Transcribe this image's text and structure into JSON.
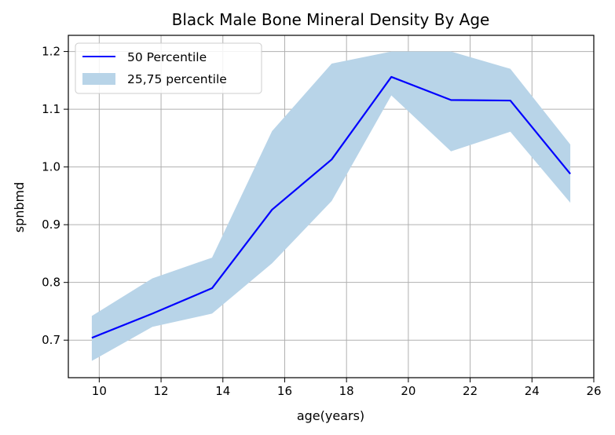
{
  "chart_data": {
    "type": "line",
    "title": "Black Male Bone Mineral Density By Age",
    "xlabel": "age(years)",
    "ylabel": "spnbmd",
    "xlim": [
      9,
      26
    ],
    "ylim": [
      0.635,
      1.228
    ],
    "xticks": [
      10,
      12,
      14,
      16,
      18,
      20,
      22,
      24,
      26
    ],
    "xtick_labels": [
      "10",
      "12",
      "14",
      "16",
      "18",
      "20",
      "22",
      "24",
      "26"
    ],
    "yticks": [
      0.7,
      0.8,
      0.9,
      1.0,
      1.1,
      1.2
    ],
    "ytick_labels": [
      "0.7",
      "0.8",
      "0.9",
      "1.0",
      "1.1",
      "1.2"
    ],
    "grid": true,
    "legend_position": "top-left",
    "x": [
      9.76,
      11.72,
      13.65,
      15.59,
      17.52,
      19.45,
      21.38,
      23.3,
      25.24
    ],
    "series": [
      {
        "name": "50 Percentile",
        "kind": "line",
        "color": "#0000ff",
        "values": [
          0.704,
          0.746,
          0.79,
          0.926,
          1.013,
          1.156,
          1.116,
          1.115,
          0.988
        ]
      },
      {
        "name": "25,75 percentile",
        "kind": "band",
        "color": "#b8d4e8",
        "lower": [
          0.664,
          0.723,
          0.746,
          0.833,
          0.941,
          1.124,
          1.027,
          1.061,
          0.938
        ],
        "upper": [
          0.742,
          0.807,
          0.843,
          1.062,
          1.179,
          1.2,
          1.2,
          1.17,
          1.039
        ]
      }
    ]
  }
}
